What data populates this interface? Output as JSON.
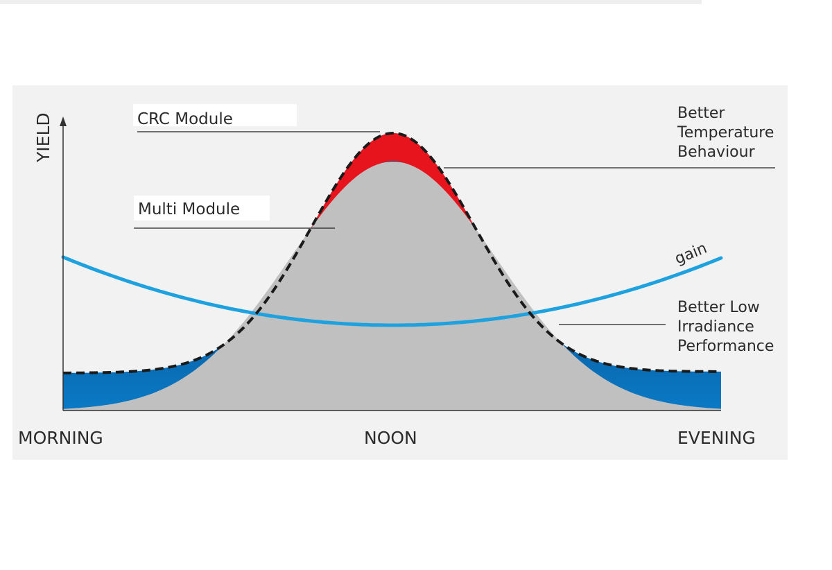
{
  "labels": {
    "y_axis": "YIELD",
    "x_left": "MORNING",
    "x_mid": "NOON",
    "x_right": "EVENING",
    "crc_module": "CRC Module",
    "multi_module": "Multi Module",
    "temp_line1": "Better",
    "temp_line2": "Temperature",
    "temp_line3": "Behaviour",
    "low_line1": "Better Low",
    "low_line2": "Irradiance",
    "low_line3": "Performance",
    "gain": "gain"
  },
  "colors": {
    "multi_fill": "#c0c0c0",
    "temperature_band": "#e8141d",
    "low_irradiance_band": "#005a9e",
    "gain_curve": "#1ea1df",
    "crc_outline": "#1a1a1a",
    "panel": "#f2f2f2"
  }
}
